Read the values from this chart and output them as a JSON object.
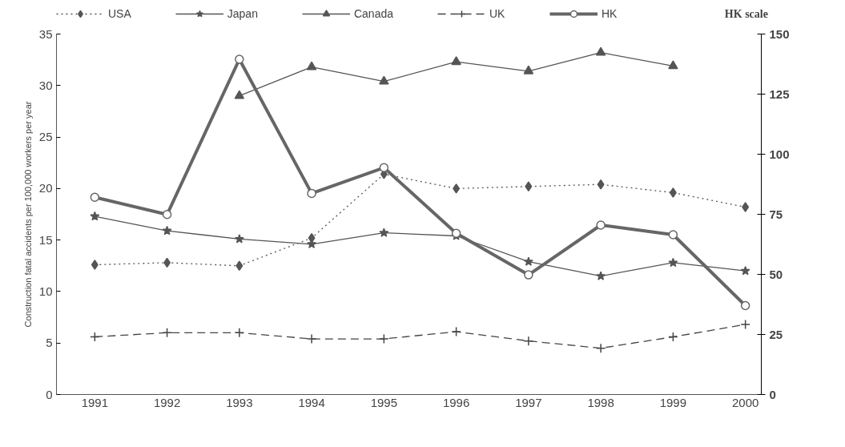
{
  "chart_data": {
    "type": "line",
    "ylabel": "Construction fatal accidents per 100,000 workers per year",
    "y2label": "HK scale",
    "categories": [
      "1991",
      "1992",
      "1993",
      "1994",
      "1995",
      "1996",
      "1997",
      "1998",
      "1999",
      "2000"
    ],
    "ylim": [
      0,
      35
    ],
    "yticks": [
      0,
      5,
      10,
      15,
      20,
      25,
      30,
      35
    ],
    "y2lim": [
      0,
      150
    ],
    "y2ticks": [
      0,
      25,
      50,
      75,
      100,
      125,
      150
    ],
    "grid": false,
    "legend": "top",
    "series": [
      {
        "name": "USA",
        "color": "#555555",
        "marker": "diamond",
        "line_style": "dotted",
        "values": [
          12.6,
          12.8,
          12.5,
          15.2,
          21.4,
          20.0,
          20.2,
          20.4,
          19.6,
          18.2
        ]
      },
      {
        "name": "Japan",
        "color": "#555555",
        "marker": "star",
        "line_style": "solid",
        "values": [
          17.3,
          15.9,
          15.1,
          14.6,
          15.7,
          15.4,
          12.9,
          11.5,
          12.8,
          12.0
        ]
      },
      {
        "name": "Canada",
        "color": "#555555",
        "marker": "triangle",
        "line_style": "solid",
        "values": [
          null,
          null,
          29.0,
          31.8,
          30.4,
          32.3,
          31.4,
          33.2,
          31.9,
          null
        ]
      },
      {
        "name": "UK",
        "color": "#444444",
        "marker": "cross",
        "line_style": "dashed",
        "values": [
          5.6,
          6.0,
          6.0,
          5.4,
          5.4,
          6.1,
          5.2,
          4.5,
          5.6,
          6.8
        ]
      },
      {
        "name": "HK",
        "color": "#666666",
        "marker": "circle",
        "line_style": "solid",
        "axis": "y2",
        "values": [
          82.1,
          74.9,
          139.5,
          83.7,
          94.4,
          67.1,
          49.8,
          70.5,
          66.5,
          37.0
        ]
      }
    ]
  }
}
